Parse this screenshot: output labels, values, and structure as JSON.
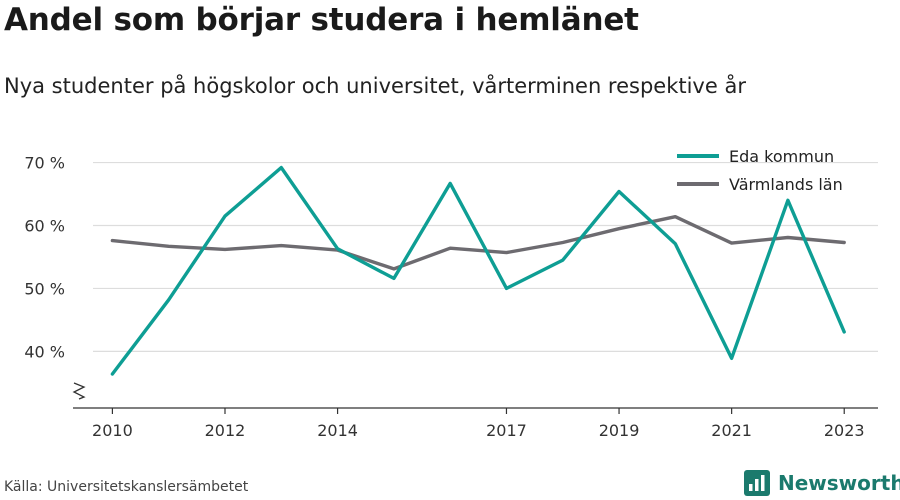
{
  "header": {
    "title": "Andel som börjar studera i hemlänet",
    "subtitle": "Nya studenter på högskolor och universitet, vårterminen respektive år"
  },
  "footer": {
    "source": "Källa: Universitetskanslersämbetet",
    "brand": "Newsworthy",
    "brand_icon": "newsworthy-logo-icon",
    "brand_color": "#1b7a6d"
  },
  "chart_data": {
    "type": "line",
    "x": [
      2010,
      2011,
      2012,
      2013,
      2014,
      2015,
      2016,
      2017,
      2018,
      2019,
      2020,
      2021,
      2022,
      2023
    ],
    "x_tick_labels": [
      "2010",
      "2012",
      "2014",
      "2017",
      "2019",
      "2021",
      "2023"
    ],
    "x_tick_values": [
      2010,
      2012,
      2014,
      2017,
      2019,
      2021,
      2023
    ],
    "y_tick_values": [
      40,
      50,
      60,
      70
    ],
    "y_tick_labels": [
      "40 %",
      "50 %",
      "60 %",
      "70 %"
    ],
    "ylim": [
      31,
      72
    ],
    "xlim": [
      2009.3,
      2023.6
    ],
    "y_axis_break": true,
    "grid": "horizontal",
    "legend": "top-right",
    "series": [
      {
        "name": "Eda kommun",
        "color": "#0e9e94",
        "values": [
          36.4,
          48.2,
          61.5,
          69.2,
          56.3,
          51.6,
          66.7,
          50.0,
          54.5,
          65.4,
          57.1,
          38.9,
          64.0,
          43.1
        ]
      },
      {
        "name": "Värmlands län",
        "color": "#6d6b70",
        "values": [
          57.6,
          56.7,
          56.2,
          56.8,
          56.1,
          53.1,
          56.4,
          55.7,
          57.3,
          59.5,
          61.4,
          57.2,
          58.1,
          57.3
        ]
      }
    ]
  }
}
